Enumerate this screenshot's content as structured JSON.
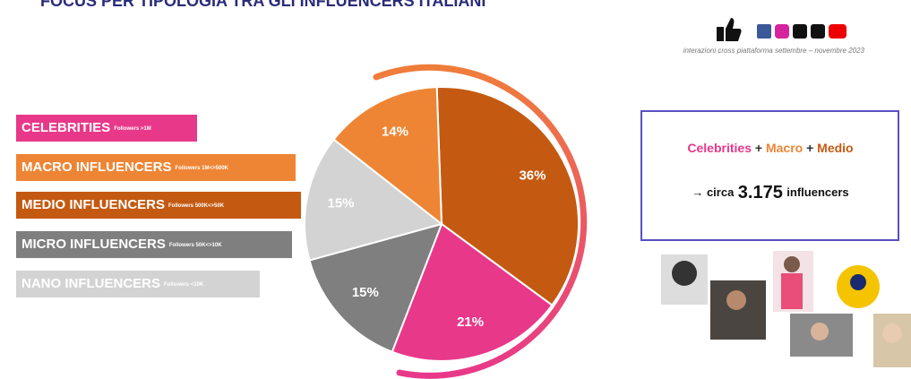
{
  "chart_data": {
    "type": "pie",
    "title": "FOCUS PER TIPOLOGIA TRA GLI INFLUENCERS ITALIANI",
    "subtitle": "interazioni cross piattaforma settembre – novembre 2023",
    "categories": [
      "CELEBRITIES",
      "MACRO INFLUENCERS",
      "MEDIO INFLUENCERS",
      "MICRO INFLUENCERS",
      "NANO INFLUENCERS"
    ],
    "category_notes": [
      "Followers >1M",
      "Followers 1M<>500K",
      "Followers 500K<>50K",
      "Followers 50K<>10K",
      "Followers <10K"
    ],
    "values": [
      21,
      14,
      36,
      15,
      15
    ],
    "value_labels": [
      "21%",
      "14%",
      "36%",
      "15%",
      "15%"
    ],
    "colors": [
      "#e8388a",
      "#ee8535",
      "#c45a12",
      "#7f7f7f",
      "#d3d3d3"
    ],
    "summary": {
      "line1": [
        "Celebrities",
        "+",
        "Macro",
        "+",
        "Medio"
      ],
      "arrow": "→ circa",
      "number": "3.175",
      "unit": "influencers"
    }
  }
}
